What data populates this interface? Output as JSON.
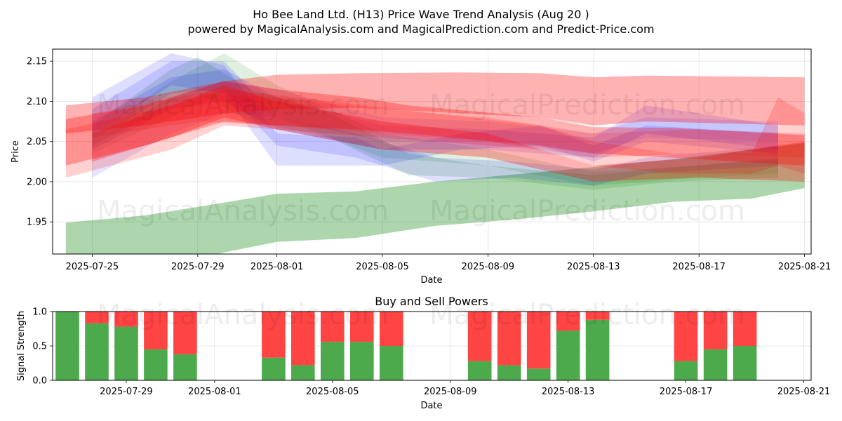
{
  "header": {
    "title": "Ho Bee Land Ltd. (H13) Price Wave Trend Analysis (Aug 20 )",
    "subtitle": "powered by MagicalAnalysis.com and MagicalPrediction.com and Predict-Price.com"
  },
  "watermarks": [
    "MagicalAnalysis.com",
    "MagicalPrediction.com"
  ],
  "colors": {
    "green": "#008000",
    "red": "#ff0000",
    "blue": "#0000ff",
    "bar_buy": "#4caa4c",
    "bar_sell": "#ff4444"
  },
  "chart_data": [
    {
      "type": "area",
      "title": "",
      "xlabel": "Date",
      "ylabel": "Price",
      "ylim": [
        1.91,
        2.165
      ],
      "xlim": [
        "2025-07-23T12:00",
        "2025-08-21T06:00"
      ],
      "xticks": [
        "2025-07-25",
        "2025-07-29",
        "2025-08-01",
        "2025-08-05",
        "2025-08-09",
        "2025-08-13",
        "2025-08-17",
        "2025-08-21"
      ],
      "yticks": [
        1.95,
        2.0,
        2.05,
        2.1,
        2.15
      ],
      "grid": true,
      "series": [
        {
          "color": "green",
          "alpha": 0.32,
          "points": [
            [
              "2025-07-24",
              1.949,
              1.87
            ],
            [
              "2025-07-27",
              1.958,
              1.888
            ],
            [
              "2025-07-30",
              1.974,
              1.912
            ],
            [
              "2025-08-01",
              1.985,
              1.925
            ],
            [
              "2025-08-04",
              1.988,
              1.93
            ],
            [
              "2025-08-07",
              2.0,
              1.945
            ],
            [
              "2025-08-10",
              2.009,
              1.953
            ],
            [
              "2025-08-13",
              2.018,
              1.963
            ],
            [
              "2025-08-16",
              2.028,
              1.975
            ],
            [
              "2025-08-19",
              2.04,
              1.979
            ],
            [
              "2025-08-21",
              2.048,
              1.992
            ]
          ]
        },
        {
          "color": "green",
          "alpha": 0.15,
          "points": [
            [
              "2025-07-25",
              2.07,
              2.045
            ],
            [
              "2025-07-28",
              2.14,
              2.095
            ],
            [
              "2025-07-29",
              2.155,
              2.11
            ],
            [
              "2025-07-31",
              2.115,
              2.075
            ],
            [
              "2025-08-03",
              2.085,
              2.055
            ],
            [
              "2025-08-06",
              2.035,
              2.008
            ],
            [
              "2025-08-09",
              2.02,
              2.005
            ],
            [
              "2025-08-13",
              2.008,
              1.99
            ],
            [
              "2025-08-16",
              2.018,
              2.0
            ],
            [
              "2025-08-20",
              2.028,
              2.005
            ]
          ]
        },
        {
          "color": "green",
          "alpha": 0.12,
          "points": [
            [
              "2025-07-25",
              2.06,
              2.035
            ],
            [
              "2025-07-28",
              2.125,
              2.08
            ],
            [
              "2025-07-30",
              2.16,
              2.11
            ],
            [
              "2025-08-01",
              2.12,
              2.08
            ],
            [
              "2025-08-05",
              2.06,
              2.03
            ],
            [
              "2025-08-09",
              2.04,
              2.02
            ],
            [
              "2025-08-13",
              2.012,
              1.995
            ],
            [
              "2025-08-17",
              2.02,
              2.005
            ],
            [
              "2025-08-20",
              2.03,
              2.01
            ]
          ]
        },
        {
          "color": "blue",
          "alpha": 0.13,
          "points": [
            [
              "2025-07-25",
              2.105,
              2.06
            ],
            [
              "2025-07-28",
              2.16,
              2.12
            ],
            [
              "2025-07-30",
              2.145,
              2.11
            ],
            [
              "2025-08-01",
              2.06,
              2.02
            ],
            [
              "2025-08-04",
              2.055,
              2.02
            ],
            [
              "2025-08-05",
              2.04,
              2.02
            ],
            [
              "2025-08-08",
              2.06,
              2.04
            ],
            [
              "2025-08-11",
              2.07,
              2.045
            ],
            [
              "2025-08-13",
              2.045,
              2.025
            ],
            [
              "2025-08-15",
              2.07,
              2.05
            ],
            [
              "2025-08-20",
              2.06,
              2.035
            ]
          ]
        },
        {
          "color": "blue",
          "alpha": 0.13,
          "points": [
            [
              "2025-07-25",
              2.09,
              2.05
            ],
            [
              "2025-07-28",
              2.15,
              2.11
            ],
            [
              "2025-07-30",
              2.15,
              2.115
            ],
            [
              "2025-08-01",
              2.08,
              2.045
            ],
            [
              "2025-08-04",
              2.06,
              2.03
            ],
            [
              "2025-08-07",
              2.03,
              2.0
            ],
            [
              "2025-08-10",
              2.025,
              2.005
            ],
            [
              "2025-08-13",
              2.015,
              1.995
            ],
            [
              "2025-08-15",
              2.03,
              2.01
            ],
            [
              "2025-08-20",
              2.045,
              2.02
            ]
          ]
        },
        {
          "color": "blue",
          "alpha": 0.13,
          "points": [
            [
              "2025-07-25",
              2.075,
              2.04
            ],
            [
              "2025-07-28",
              2.13,
              2.09
            ],
            [
              "2025-07-30",
              2.14,
              2.1
            ],
            [
              "2025-08-01",
              2.105,
              2.065
            ],
            [
              "2025-08-05",
              2.07,
              2.04
            ],
            [
              "2025-08-09",
              2.065,
              2.04
            ],
            [
              "2025-08-13",
              2.055,
              2.03
            ],
            [
              "2025-08-15",
              2.095,
              2.06
            ],
            [
              "2025-08-20",
              2.07,
              2.04
            ]
          ]
        },
        {
          "color": "blue",
          "alpha": 0.1,
          "points": [
            [
              "2025-07-25",
              2.05,
              2.005
            ],
            [
              "2025-07-28",
              2.105,
              2.06
            ],
            [
              "2025-07-30",
              2.125,
              2.085
            ],
            [
              "2025-08-01",
              2.115,
              2.08
            ],
            [
              "2025-08-05",
              2.08,
              2.05
            ],
            [
              "2025-08-09",
              2.075,
              2.05
            ],
            [
              "2025-08-13",
              2.06,
              2.035
            ],
            [
              "2025-08-15",
              2.08,
              2.055
            ],
            [
              "2025-08-20",
              2.075,
              2.05
            ]
          ]
        },
        {
          "color": "red",
          "alpha": 0.3,
          "points": [
            [
              "2025-07-24",
              2.095,
              2.06
            ],
            [
              "2025-07-27",
              2.105,
              2.07
            ],
            [
              "2025-07-30",
              2.125,
              2.085
            ],
            [
              "2025-08-01",
              2.133,
              2.09
            ],
            [
              "2025-08-04",
              2.135,
              2.092
            ],
            [
              "2025-08-08",
              2.136,
              2.085
            ],
            [
              "2025-08-11",
              2.135,
              2.08
            ],
            [
              "2025-08-13",
              2.13,
              2.07
            ],
            [
              "2025-08-15",
              2.132,
              2.075
            ],
            [
              "2025-08-21",
              2.13,
              2.07
            ]
          ]
        },
        {
          "color": "red",
          "alpha": 0.3,
          "points": [
            [
              "2025-07-24",
              2.078,
              2.02
            ],
            [
              "2025-07-27",
              2.095,
              2.045
            ],
            [
              "2025-07-30",
              2.125,
              2.075
            ],
            [
              "2025-08-01",
              2.115,
              2.07
            ],
            [
              "2025-08-04",
              2.105,
              2.065
            ],
            [
              "2025-08-06",
              2.095,
              2.06
            ],
            [
              "2025-08-11",
              2.08,
              2.045
            ],
            [
              "2025-08-13",
              2.068,
              2.035
            ],
            [
              "2025-08-16",
              2.067,
              2.03
            ],
            [
              "2025-08-21",
              2.058,
              2.02
            ]
          ]
        },
        {
          "color": "red",
          "alpha": 0.3,
          "points": [
            [
              "2025-07-25",
              2.06,
              2.025
            ],
            [
              "2025-07-28",
              2.095,
              2.055
            ],
            [
              "2025-07-30",
              2.12,
              2.08
            ],
            [
              "2025-08-01",
              2.1,
              2.065
            ],
            [
              "2025-08-05",
              2.075,
              2.04
            ],
            [
              "2025-08-09",
              2.06,
              2.03
            ],
            [
              "2025-08-13",
              2.02,
              2.0
            ],
            [
              "2025-08-17",
              2.03,
              2.005
            ],
            [
              "2025-08-21",
              2.05,
              2.0
            ]
          ]
        },
        {
          "color": "red",
          "alpha": 0.18,
          "points": [
            [
              "2025-07-24",
              2.065,
              2.005
            ],
            [
              "2025-07-28",
              2.095,
              2.04
            ],
            [
              "2025-07-30",
              2.115,
              2.07
            ],
            [
              "2025-08-03",
              2.1,
              2.06
            ],
            [
              "2025-08-07",
              2.085,
              2.05
            ],
            [
              "2025-08-11",
              2.07,
              2.04
            ],
            [
              "2025-08-13",
              2.05,
              2.02
            ],
            [
              "2025-08-16",
              2.035,
              2.01
            ],
            [
              "2025-08-19",
              2.035,
              2.01
            ],
            [
              "2025-08-20",
              2.105,
              2.02
            ],
            [
              "2025-08-21",
              2.085,
              2.01
            ]
          ]
        },
        {
          "color": "red",
          "alpha": 0.15,
          "points": [
            [
              "2025-07-25",
              2.085,
              2.055
            ],
            [
              "2025-07-29",
              2.11,
              2.075
            ],
            [
              "2025-08-01",
              2.105,
              2.07
            ],
            [
              "2025-08-05",
              2.09,
              2.06
            ],
            [
              "2025-08-09",
              2.08,
              2.05
            ],
            [
              "2025-08-13",
              2.06,
              2.03
            ],
            [
              "2025-08-17",
              2.065,
              2.035
            ],
            [
              "2025-08-21",
              2.06,
              2.03
            ]
          ]
        }
      ]
    },
    {
      "type": "bar",
      "title": "Buy and Sell Powers",
      "xlabel": "Date",
      "ylabel": "Signal Strength",
      "ylim": [
        0,
        1.0
      ],
      "xlim": [
        "2025-07-26T12:00",
        "2025-08-21T06:00"
      ],
      "xticks": [
        "2025-07-29",
        "2025-08-01",
        "2025-08-05",
        "2025-08-09",
        "2025-08-13",
        "2025-08-17",
        "2025-08-21"
      ],
      "yticks": [
        0.0,
        0.5,
        1.0
      ],
      "grid": true,
      "categories": [
        "2025-07-27",
        "2025-07-28",
        "2025-07-29",
        "2025-07-30",
        "2025-07-31",
        "2025-08-03",
        "2025-08-04",
        "2025-08-05",
        "2025-08-06",
        "2025-08-07",
        "2025-08-10",
        "2025-08-11",
        "2025-08-12",
        "2025-08-13",
        "2025-08-14",
        "2025-08-17",
        "2025-08-18",
        "2025-08-19"
      ],
      "series": [
        {
          "name": "buy",
          "values": [
            1.0,
            0.83,
            0.78,
            0.45,
            0.38,
            0.33,
            0.22,
            0.56,
            0.56,
            0.5,
            0.28,
            0.22,
            0.17,
            0.72,
            0.88,
            0.28,
            0.45,
            0.5
          ]
        },
        {
          "name": "sell",
          "values": [
            0.0,
            0.17,
            0.22,
            0.55,
            0.62,
            0.67,
            0.78,
            0.44,
            0.44,
            0.5,
            0.72,
            0.78,
            0.83,
            0.28,
            0.12,
            0.72,
            0.55,
            0.5
          ]
        }
      ]
    }
  ]
}
